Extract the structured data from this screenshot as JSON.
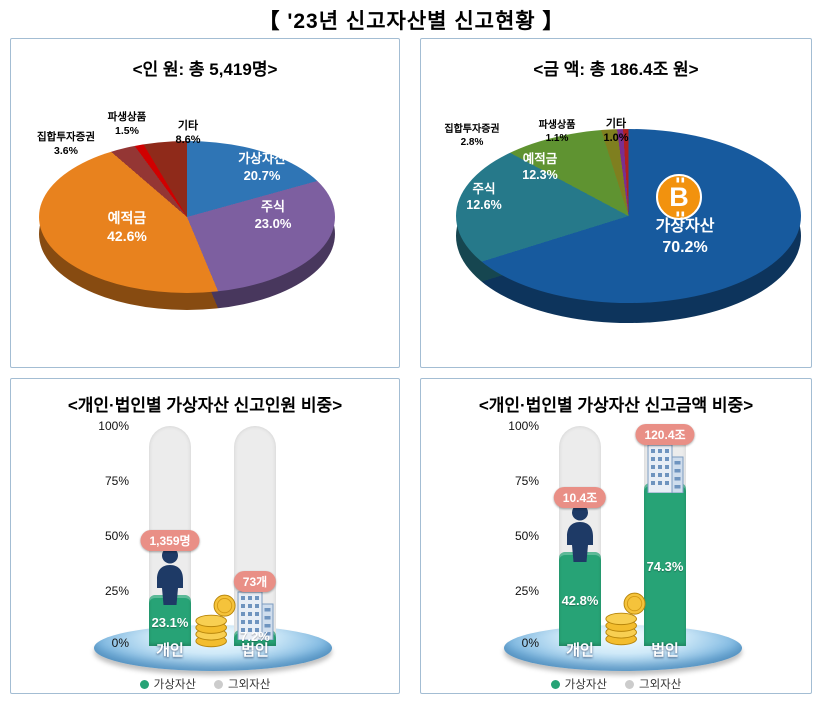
{
  "page": {
    "title": "【 '23년 신고자산별 신고현황 】"
  },
  "chart_data": [
    {
      "type": "pie",
      "title": "<인 원: 총 5,419명>",
      "slices": [
        {
          "label": "가상자산",
          "value": 20.7,
          "pct": "20.7%",
          "color": "#2f75b5"
        },
        {
          "label": "주식",
          "value": 23.0,
          "pct": "23.0%",
          "color": "#7d5fa0"
        },
        {
          "label": "예적금",
          "value": 42.6,
          "pct": "42.6%",
          "color": "#e8821e"
        },
        {
          "label": "집합투자증권",
          "value": 3.6,
          "pct": "3.6%",
          "color": "#943634"
        },
        {
          "label": "파생상품",
          "value": 1.5,
          "pct": "1.5%",
          "color": "#d00000"
        },
        {
          "label": "기타",
          "value": 8.6,
          "pct": "8.6%",
          "color": "#8f2a1a"
        }
      ]
    },
    {
      "type": "pie",
      "title": "<금 액: 총 186.4조 원>",
      "icon": "bitcoin-icon",
      "slices": [
        {
          "label": "가상자산",
          "value": 70.2,
          "pct": "70.2%",
          "color": "#175a9e"
        },
        {
          "label": "주식",
          "value": 12.6,
          "pct": "12.6%",
          "color": "#26798a"
        },
        {
          "label": "예적금",
          "value": 12.3,
          "pct": "12.3%",
          "color": "#5f9331"
        },
        {
          "label": "집합투자증권",
          "value": 2.8,
          "pct": "2.8%",
          "color": "#7f7f1f"
        },
        {
          "label": "파생상품",
          "value": 1.1,
          "pct": "1.1%",
          "color": "#7a2f8f"
        },
        {
          "label": "기타",
          "value": 1.0,
          "pct": "1.0%",
          "color": "#b02020"
        }
      ]
    },
    {
      "type": "bar",
      "title": "<개인·법인별 가상자산 신고인원 비중>",
      "categories": [
        "개인",
        "법인"
      ],
      "series": [
        {
          "name": "가상자산",
          "values": [
            23.1,
            7.2
          ],
          "color": "#27a376"
        },
        {
          "name": "그외자산",
          "values": [
            76.9,
            92.8
          ],
          "color": "#ececec"
        }
      ],
      "pcts": [
        "23.1%",
        "7.2%"
      ],
      "badges": [
        "1,359명",
        "73개"
      ],
      "badge_color": "#e98f86",
      "yticks": [
        "100%",
        "75%",
        "50%",
        "25%",
        "0%"
      ],
      "ylim": [
        0,
        100
      ],
      "legend": [
        {
          "label": "가상자산",
          "color": "#27a376"
        },
        {
          "label": "그외자산",
          "color": "#cccccc"
        }
      ]
    },
    {
      "type": "bar",
      "title": "<개인·법인별 가상자산 신고금액 비중>",
      "categories": [
        "개인",
        "법인"
      ],
      "series": [
        {
          "name": "가상자산",
          "values": [
            42.8,
            74.3
          ],
          "color": "#27a376"
        },
        {
          "name": "그외자산",
          "values": [
            57.2,
            25.7
          ],
          "color": "#ececec"
        }
      ],
      "pcts": [
        "42.8%",
        "74.3%"
      ],
      "badges": [
        "10.4조",
        "120.4조"
      ],
      "badge_color": "#e98f86",
      "yticks": [
        "100%",
        "75%",
        "50%",
        "25%",
        "0%"
      ],
      "ylim": [
        0,
        100
      ],
      "legend": [
        {
          "label": "가상자산",
          "color": "#27a376"
        },
        {
          "label": "그외자산",
          "color": "#cccccc"
        }
      ]
    }
  ]
}
